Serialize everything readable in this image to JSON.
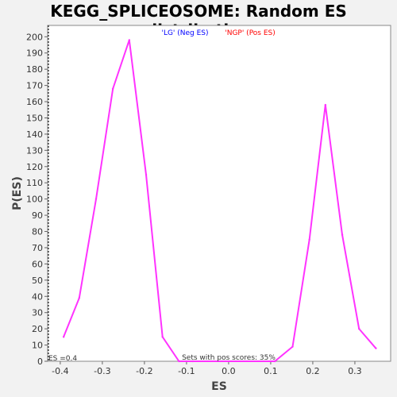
{
  "chart_data": {
    "type": "line",
    "title": "KEGG_SPLICEOSOME: Random ES distribution",
    "xlabel": "ES",
    "ylabel": "P(ES)",
    "xlim": [
      -0.43,
      0.385
    ],
    "ylim": [
      0,
      207
    ],
    "xticks": [
      "-0.4",
      "-0.3",
      "-0.2",
      "-0.1",
      "0.0",
      "0.1",
      "0.2",
      "0.3"
    ],
    "yticks": [
      "0",
      "10",
      "20",
      "30",
      "40",
      "50",
      "60",
      "70",
      "80",
      "90",
      "100",
      "110",
      "120",
      "130",
      "140",
      "150",
      "160",
      "170",
      "180",
      "190",
      "200"
    ],
    "grid": false,
    "legend_position": "top",
    "legend": [
      {
        "label": "'LG' (Neg ES)",
        "color": "#0000ff"
      },
      {
        "label": "'NGP' (Pos ES)",
        "color": "#ff0000"
      }
    ],
    "line_color": "#ff33ff",
    "series": [
      {
        "x": [
          -0.392,
          -0.355,
          -0.315,
          -0.275,
          -0.236,
          -0.196,
          -0.157,
          -0.118,
          -0.085,
          0.11,
          0.152,
          0.192,
          0.23,
          0.27,
          0.31,
          0.35
        ],
        "y": [
          15,
          39,
          100,
          168,
          198,
          115,
          15,
          0,
          0,
          0,
          9,
          75,
          158,
          78,
          20,
          8
        ]
      }
    ],
    "annotations": {
      "bottom_left": "ES =0.4",
      "bottom_center": "Sets with pos scores: 35%"
    }
  }
}
